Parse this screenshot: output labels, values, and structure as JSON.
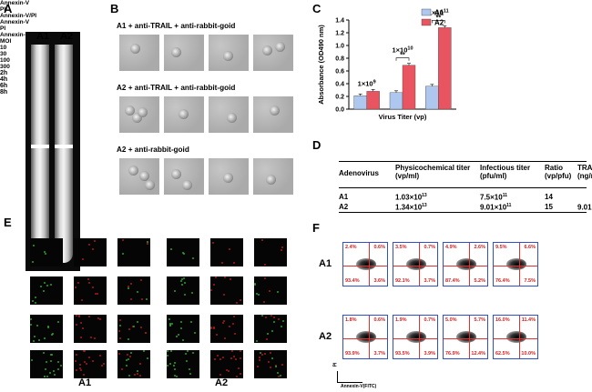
{
  "panels": {
    "a": "A",
    "b": "B",
    "c": "C",
    "d": "D",
    "e": "E",
    "f": "F"
  },
  "panel_a": {
    "tube1": "A1",
    "tube2": "A2"
  },
  "panel_b": {
    "row1": "A1 + anti-TRAIL + anti-rabbit-goid",
    "row2": "A2 + anti-TRAIL + anti-rabbit-goid",
    "row3": "A2 + anti-rabbit-goid"
  },
  "chart_data": {
    "type": "bar",
    "categories": [
      "1×10^9",
      "1×10^10",
      "1×10^11"
    ],
    "series": [
      {
        "name": "A1",
        "values": [
          0.21,
          0.26,
          0.36
        ],
        "color": "#aec7ee"
      },
      {
        "name": "A2",
        "values": [
          0.28,
          0.69,
          1.28
        ],
        "color": "#e85560"
      }
    ],
    "title": "",
    "xlabel": "Virus Titer (vp)",
    "ylabel": "Absorbance (OD490 nm)",
    "ylim": [
      0,
      1.4
    ],
    "yticks": [
      "0.0",
      "0.2",
      "0.4",
      "0.6",
      "0.8",
      "1.0",
      "1.2",
      "1.4"
    ],
    "annotations": [
      {
        "group": 0,
        "text": "1×10",
        "sup": "9",
        "sig": ""
      },
      {
        "group": 1,
        "text": "1×10",
        "sup": "10",
        "sig": "**"
      },
      {
        "group": 2,
        "text": "1×10",
        "sup": "11",
        "sig": "**"
      }
    ]
  },
  "table": {
    "headers": [
      "Adenovirus",
      "Physicochemical titer (vp/ml)",
      "Infectious titer (pfu/ml)",
      "Ratio (vp/pfu)",
      "TRAIL (ng/ml)"
    ],
    "rows": [
      [
        "A1",
        "1.03×10",
        "13",
        "7.5×10",
        "11",
        "14",
        "",
        ""
      ],
      [
        "A2",
        "1.34×10",
        "13",
        "9.01×10",
        "11",
        "15",
        "9.01×10",
        "3"
      ]
    ]
  },
  "panel_e": {
    "col_labels": [
      "Annexin-V",
      "PI",
      "Annexin-V/PI"
    ],
    "moi_label": "MOI",
    "mois": [
      "10",
      "30",
      "100",
      "300"
    ],
    "group1": "A1",
    "group2": "A2"
  },
  "panel_f": {
    "times": [
      "2h",
      "4h",
      "6h",
      "8h"
    ],
    "rows": [
      {
        "label": "A1",
        "quads": [
          [
            "2.4%",
            "0.6%",
            "93.4%",
            "3.6%"
          ],
          [
            "3.5%",
            "0.7%",
            "92.1%",
            "3.7%"
          ],
          [
            "4.9%",
            "2.6%",
            "87.4%",
            "5.2%"
          ],
          [
            "9.5%",
            "6.6%",
            "76.4%",
            "7.5%"
          ]
        ]
      },
      {
        "label": "A2",
        "quads": [
          [
            "1.8%",
            "0.6%",
            "93.9%",
            "3.7%"
          ],
          [
            "1.9%",
            "0.7%",
            "93.5%",
            "3.9%"
          ],
          [
            "5.0%",
            "5.7%",
            "76.9%",
            "12.4%"
          ],
          [
            "16.0%",
            "11.4%",
            "62.5%",
            "10.0%"
          ]
        ]
      }
    ],
    "y_axis": "PI",
    "x_axis": "Annexin-V(FITC)"
  }
}
